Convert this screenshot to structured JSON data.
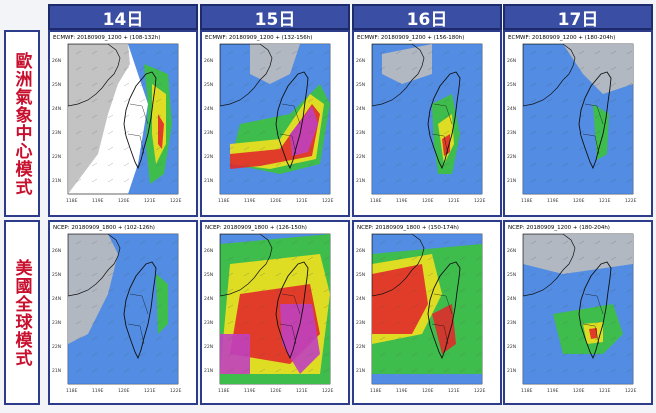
{
  "days": [
    "14日",
    "15日",
    "16日",
    "17日"
  ],
  "rows": [
    {
      "label": "歐洲氣象中心模式",
      "panel_titles": [
        "ECMWF: 20180909_1200 + (108-132h)",
        "ECMWF: 20180909_1200 + (132-156h)",
        "ECMWF: 20180909_1200 + (156-180h)",
        "ECMWF: 20180909_1200 + (180-204h)"
      ]
    },
    {
      "label": "美國全球模式",
      "panel_titles": [
        "NCEP: 20180909_1800 + (102-126h)",
        "NCEP: 20180909_1800 + (126-150h)",
        "NCEP: 20180909_1800 + (150-174h)",
        "NCEP: 20180909_1200 + (180-204h)"
      ]
    }
  ],
  "lat_ticks": [
    "26N",
    "25N",
    "24N",
    "23N",
    "22N",
    "21N"
  ],
  "lon_ticks": [
    "118E",
    "119E",
    "120E",
    "121E",
    "122E"
  ],
  "map_colors": {
    "sea_blue": "#3f7fe0",
    "land_gray": "#bdbdbd",
    "green": "#3cc23c",
    "yellow": "#f0e020",
    "red": "#e02a2a",
    "magenta": "#c040c0"
  }
}
